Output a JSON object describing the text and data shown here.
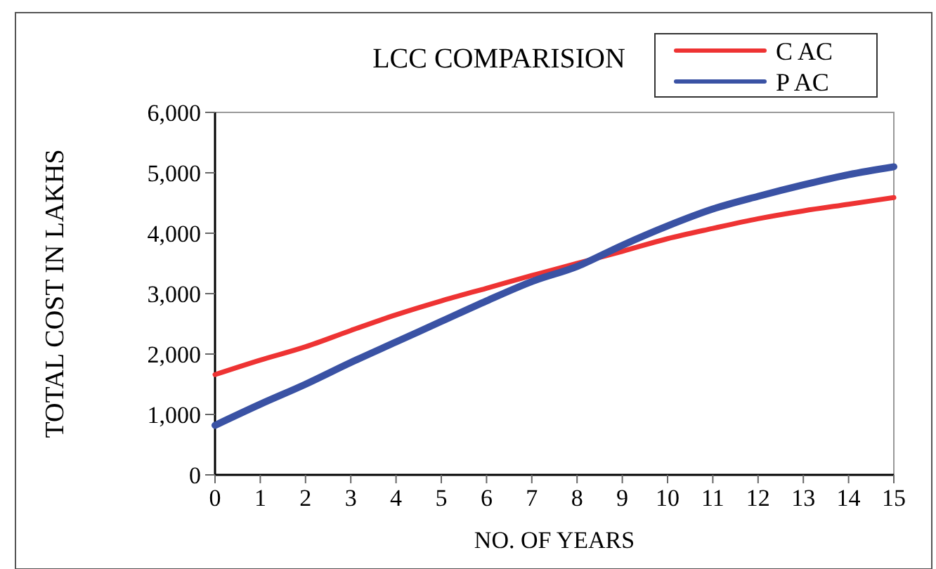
{
  "chart_data": {
    "type": "line",
    "title": "LCC COMPARISION",
    "xlabel": "NO. OF YEARS",
    "ylabel": "TOTAL COST IN LAKHS",
    "x": [
      0,
      1,
      2,
      3,
      4,
      5,
      6,
      7,
      8,
      9,
      10,
      11,
      12,
      13,
      14,
      15
    ],
    "xlim": [
      0,
      15
    ],
    "xticks": [
      0,
      1,
      2,
      3,
      4,
      5,
      6,
      7,
      8,
      9,
      10,
      11,
      12,
      13,
      14,
      15
    ],
    "ylim": [
      0,
      6000
    ],
    "yticks": [
      {
        "value": 0,
        "label": "0"
      },
      {
        "value": 1000,
        "label": "1,000"
      },
      {
        "value": 2000,
        "label": "2,000"
      },
      {
        "value": 3000,
        "label": "3,000"
      },
      {
        "value": 4000,
        "label": "4,000"
      },
      {
        "value": 5000,
        "label": "5,000"
      },
      {
        "value": 6000,
        "label": "6,000"
      }
    ],
    "grid": false,
    "legend": "top right",
    "marker": "none",
    "line_style": "solid",
    "series": [
      {
        "name": "C AC",
        "color": "#ee3333",
        "values": [
          1660,
          1900,
          2120,
          2390,
          2650,
          2880,
          3090,
          3300,
          3500,
          3700,
          3910,
          4080,
          4240,
          4370,
          4480,
          4590
        ]
      },
      {
        "name": "P AC",
        "color": "#3a52a4",
        "values": [
          820,
          1170,
          1500,
          1860,
          2200,
          2540,
          2880,
          3200,
          3450,
          3800,
          4120,
          4400,
          4610,
          4800,
          4970,
          5100
        ]
      }
    ]
  }
}
